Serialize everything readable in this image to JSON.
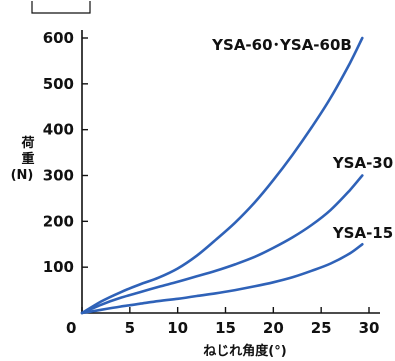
{
  "chart_data": {
    "type": "line",
    "xlabel": "ねじれ角度(°)",
    "ylabel": "荷重(N)",
    "xlim": [
      0,
      30
    ],
    "ylim": [
      0,
      600
    ],
    "x_ticks": [
      "0",
      "5",
      "10",
      "15",
      "20",
      "25",
      "30"
    ],
    "y_ticks": [
      "100",
      "200",
      "300",
      "400",
      "500",
      "600"
    ],
    "line_color": "#2f62b8",
    "grid": false,
    "series": [
      {
        "name": "YSA-60･YSA-60B",
        "x": [
          0,
          2,
          4,
          6,
          8,
          10,
          12,
          14,
          16,
          18,
          20,
          22,
          24,
          26,
          28,
          29.3
        ],
        "y": [
          0,
          25,
          45,
          62,
          77,
          97,
          125,
          160,
          197,
          240,
          290,
          345,
          405,
          470,
          545,
          600
        ]
      },
      {
        "name": "YSA-30",
        "x": [
          0,
          2,
          4,
          6,
          8,
          10,
          12,
          14,
          16,
          18,
          20,
          22,
          24,
          26,
          28,
          29.3
        ],
        "y": [
          0,
          18,
          33,
          45,
          57,
          68,
          80,
          92,
          106,
          122,
          142,
          165,
          192,
          225,
          268,
          300
        ]
      },
      {
        "name": "YSA-15",
        "x": [
          0,
          2,
          4,
          6,
          8,
          10,
          12,
          14,
          16,
          18,
          20,
          22,
          24,
          26,
          28,
          29.3
        ],
        "y": [
          0,
          7,
          14,
          20,
          26,
          31,
          37,
          43,
          50,
          58,
          67,
          78,
          92,
          108,
          130,
          150
        ]
      }
    ]
  }
}
